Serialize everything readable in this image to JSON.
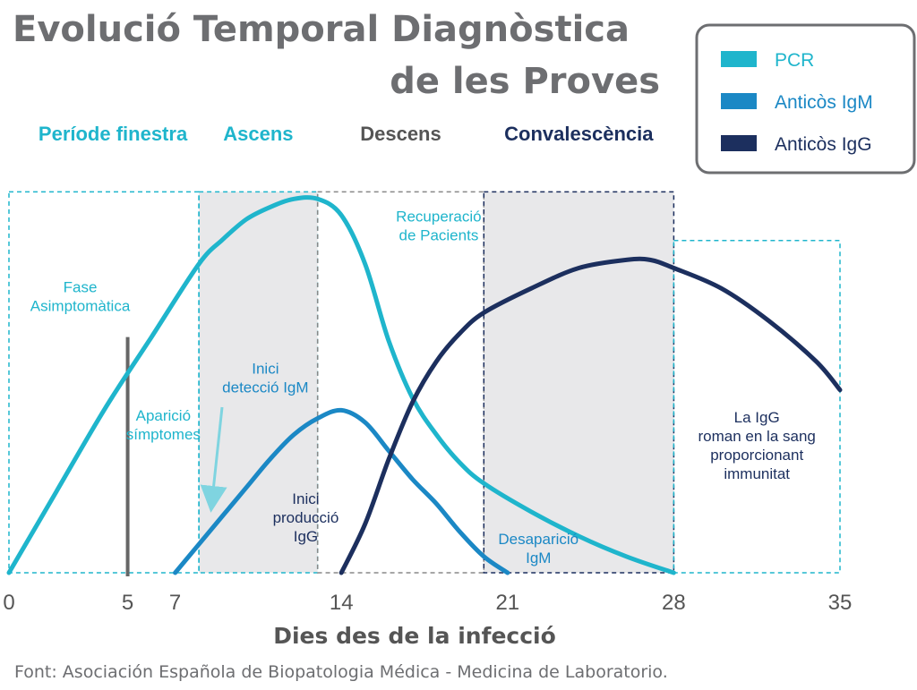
{
  "chart_data": {
    "type": "line",
    "title": [
      "Evolució Temporal Diagnòstica",
      "de les Proves"
    ],
    "xlabel": "Dies des de la infecció",
    "xlim": [
      0,
      35
    ],
    "x_ticks": [
      0,
      5,
      7,
      14,
      21,
      28,
      35
    ],
    "grid": false,
    "legend_position": "top-right",
    "periods": [
      {
        "label": "Període finestra",
        "x_start": 0,
        "x_end": 8,
        "color": "#1fb5cc"
      },
      {
        "label": "Ascens",
        "x_start": 8,
        "x_end": 13,
        "color": "#1fb5cc"
      },
      {
        "label": "Descens",
        "x_start": 13,
        "x_end": 20,
        "color": "#555555"
      },
      {
        "label": "Convalescència",
        "x_start": 20,
        "x_end": 28,
        "color": "#1c2f5e"
      }
    ],
    "series": [
      {
        "name": "PCR",
        "color": "#1fb5cc",
        "points": [
          [
            0,
            0
          ],
          [
            2,
            20
          ],
          [
            4,
            40
          ],
          [
            6,
            58
          ],
          [
            8,
            76
          ],
          [
            9,
            82
          ],
          [
            10,
            87
          ],
          [
            11,
            90
          ],
          [
            12,
            92
          ],
          [
            13,
            92
          ],
          [
            14,
            88
          ],
          [
            15,
            76
          ],
          [
            16,
            57
          ],
          [
            17,
            43
          ],
          [
            18,
            34
          ],
          [
            19,
            27
          ],
          [
            20,
            22
          ],
          [
            22,
            15
          ],
          [
            24,
            9
          ],
          [
            26,
            4
          ],
          [
            28,
            0
          ]
        ]
      },
      {
        "name": "Anticòs IgM",
        "color": "#1b88c5",
        "points": [
          [
            7,
            0
          ],
          [
            8,
            7
          ],
          [
            9,
            14
          ],
          [
            10,
            21
          ],
          [
            11,
            28
          ],
          [
            12,
            34
          ],
          [
            13,
            38
          ],
          [
            14,
            40
          ],
          [
            15,
            37
          ],
          [
            16,
            30
          ],
          [
            17,
            23
          ],
          [
            18,
            17
          ],
          [
            19,
            10
          ],
          [
            20,
            4
          ],
          [
            21,
            0
          ]
        ]
      },
      {
        "name": "Anticòs IgG",
        "color": "#1c2f5e",
        "points": [
          [
            14,
            0
          ],
          [
            15,
            12
          ],
          [
            16,
            28
          ],
          [
            17,
            42
          ],
          [
            18,
            52
          ],
          [
            19,
            59
          ],
          [
            20,
            64
          ],
          [
            22,
            70
          ],
          [
            24,
            75
          ],
          [
            26,
            77
          ],
          [
            27,
            77
          ],
          [
            28,
            75
          ],
          [
            30,
            70
          ],
          [
            32,
            62
          ],
          [
            34,
            52
          ],
          [
            35,
            45
          ]
        ]
      }
    ],
    "ylim": [
      0,
      100
    ],
    "shaded_regions": [
      [
        8,
        13
      ],
      [
        20,
        28
      ]
    ],
    "dashed_boxes": [
      {
        "x_start": 0,
        "x_end": 8,
        "y_top": 92,
        "color": "#1fb5cc"
      },
      {
        "x_start": 8,
        "x_end": 13,
        "y_top": 92,
        "color": "#1fb5cc"
      },
      {
        "x_start": 13,
        "x_end": 20,
        "y_top": 92,
        "color": "#888888"
      },
      {
        "x_start": 20,
        "x_end": 28,
        "y_top": 92,
        "color": "#1c2f5e"
      },
      {
        "x_start": 28,
        "x_end": 35,
        "y_top": 80,
        "color": "#1fb5cc"
      }
    ],
    "asymptomatic_line": {
      "x": 5,
      "y_top": 58,
      "color": "#666666"
    },
    "annotations": [
      {
        "lines": [
          "Fase",
          "Asimptomàtica"
        ],
        "x": 3,
        "y": 69,
        "color": "#1fb5cc"
      },
      {
        "lines": [
          "Aparició",
          "símptomes"
        ],
        "x": 6.5,
        "y": 37.5,
        "color": "#1fb5cc"
      },
      {
        "lines": [
          "Inici",
          "detecció IgM"
        ],
        "x": 10.8,
        "y": 49,
        "color": "#1b88c5"
      },
      {
        "lines": [
          "Inici",
          "producció",
          "IgG"
        ],
        "x": 12.5,
        "y": 17,
        "color": "#1c2f5e"
      },
      {
        "lines": [
          "Recuperació",
          "de Pacients"
        ],
        "x": 18.1,
        "y": 86.5,
        "color": "#1fb5cc"
      },
      {
        "lines": [
          "Desaparició",
          "IgM"
        ],
        "x": 22.3,
        "y": 7,
        "color": "#1b88c5"
      },
      {
        "lines": [
          "La IgG",
          "roman en la sang",
          "proporcionant",
          "immunitat"
        ],
        "x": 31.5,
        "y": 37,
        "color": "#1c2f5e"
      }
    ]
  },
  "source": "Font: Asociación Española de Biopatologia Médica - Medicina de Laboratorio."
}
